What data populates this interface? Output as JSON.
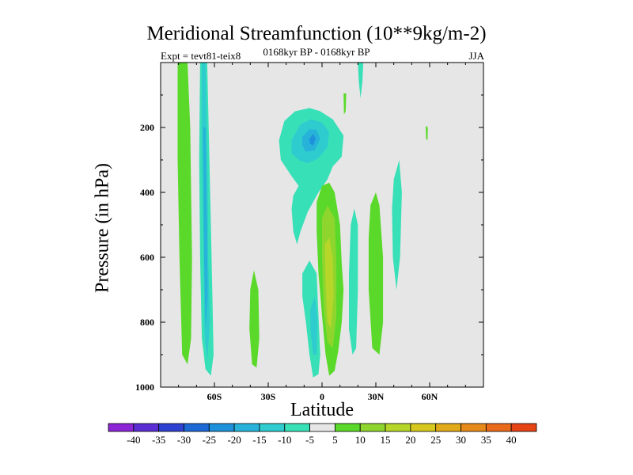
{
  "chart_data": {
    "type": "contour",
    "title": "Meridional Streamfunction (10**9kg/m-2)",
    "left_subtitle": "Expt = tevt81-teix8",
    "center_subtitle": "0168kyr BP - 0168kyr BP",
    "right_subtitle": "JJA",
    "xlabel": "Latitude",
    "ylabel": "Pressure (in hPa)",
    "xlim": [
      -90,
      90
    ],
    "ylim": [
      1000,
      0
    ],
    "x_ticks": [
      {
        "value": -60,
        "label": "60S"
      },
      {
        "value": -30,
        "label": "30S"
      },
      {
        "value": 0,
        "label": "0"
      },
      {
        "value": 30,
        "label": "30N"
      },
      {
        "value": 60,
        "label": "60N"
      }
    ],
    "y_ticks": [
      {
        "value": 200,
        "label": "200"
      },
      {
        "value": 400,
        "label": "400"
      },
      {
        "value": 600,
        "label": "600"
      },
      {
        "value": 800,
        "label": "800"
      },
      {
        "value": 1000,
        "label": "1000"
      }
    ],
    "colorbar": {
      "labels": [
        "-40",
        "-35",
        "-30",
        "-25",
        "-20",
        "-15",
        "-10",
        "-5",
        "5",
        "10",
        "15",
        "20",
        "25",
        "30",
        "35",
        "40"
      ],
      "colors": [
        "#8d26d6",
        "#5b2ed4",
        "#2e41d1",
        "#1c69d6",
        "#1e91db",
        "#26b2d9",
        "#2ecbcf",
        "#38e0b8",
        "#e6e6e6",
        "#5ad92a",
        "#8ed62e",
        "#b6d62a",
        "#d6c81e",
        "#e0aa18",
        "#e68a1a",
        "#e86a1a",
        "#e64414"
      ]
    },
    "contours": [
      {
        "name": "band-75s",
        "level": 5,
        "color": "#5ad92a",
        "points": [
          [
            -80.5,
            0
          ],
          [
            -75,
            0
          ],
          [
            -73.5,
            200
          ],
          [
            -72.5,
            600
          ],
          [
            -73,
            850
          ],
          [
            -75,
            930
          ],
          [
            -78,
            900
          ],
          [
            -79.5,
            600
          ],
          [
            -80.5,
            300
          ]
        ]
      },
      {
        "name": "band-62s-outer",
        "level": -5,
        "color": "#38e0b8",
        "points": [
          [
            -68,
            0
          ],
          [
            -64,
            0
          ],
          [
            -63,
            250
          ],
          [
            -62,
            500
          ],
          [
            -61,
            750
          ],
          [
            -60.5,
            900
          ],
          [
            -62,
            965
          ],
          [
            -65,
            945
          ],
          [
            -67,
            850
          ],
          [
            -68,
            600
          ],
          [
            -68.5,
            300
          ]
        ]
      },
      {
        "name": "band-62s-mid",
        "level": -10,
        "color": "#2ecbcf",
        "points": [
          [
            -67,
            0
          ],
          [
            -65,
            0
          ],
          [
            -64,
            300
          ],
          [
            -63.5,
            600
          ],
          [
            -62.5,
            800
          ],
          [
            -64,
            920
          ],
          [
            -65.5,
            840
          ],
          [
            -66,
            600
          ],
          [
            -67,
            250
          ]
        ]
      },
      {
        "name": "band-62s-core",
        "level": -15,
        "color": "#26b2d9",
        "points": [
          [
            -66.2,
            200
          ],
          [
            -65,
            200
          ],
          [
            -64.2,
            500
          ],
          [
            -63.8,
            720
          ],
          [
            -65,
            820
          ],
          [
            -65.8,
            600
          ]
        ]
      },
      {
        "name": "band-38s",
        "level": 5,
        "color": "#5ad92a",
        "points": [
          [
            -40,
            700
          ],
          [
            -38,
            640
          ],
          [
            -35.5,
            700
          ],
          [
            -35,
            850
          ],
          [
            -36.5,
            940
          ],
          [
            -39,
            930
          ],
          [
            -40.5,
            820
          ]
        ]
      },
      {
        "name": "upper-cell-outer",
        "level": -5,
        "color": "#38e0b8",
        "points": [
          [
            -24,
            240
          ],
          [
            -21,
            180
          ],
          [
            -15,
            150
          ],
          [
            -7,
            140
          ],
          [
            -1,
            150
          ],
          [
            6,
            175
          ],
          [
            12,
            225
          ],
          [
            11,
            290
          ],
          [
            6,
            320
          ],
          [
            3,
            360
          ],
          [
            -2,
            400
          ],
          [
            -8,
            460
          ],
          [
            -12,
            520
          ],
          [
            -14,
            560
          ],
          [
            -16,
            520
          ],
          [
            -17,
            450
          ],
          [
            -16,
            410
          ],
          [
            -13,
            380
          ],
          [
            -17,
            350
          ],
          [
            -23,
            300
          ]
        ]
      },
      {
        "name": "upper-cell-mid",
        "level": -10,
        "color": "#2ecbcf",
        "points": [
          [
            -17,
            240
          ],
          [
            -12,
            190
          ],
          [
            -6,
            175
          ],
          [
            0,
            185
          ],
          [
            4,
            215
          ],
          [
            3,
            260
          ],
          [
            -2,
            295
          ],
          [
            -8,
            310
          ],
          [
            -13,
            300
          ],
          [
            -17,
            280
          ]
        ]
      },
      {
        "name": "upper-cell-inner",
        "level": -15,
        "color": "#26b2d9",
        "points": [
          [
            -11,
            230
          ],
          [
            -7,
            205
          ],
          [
            -3,
            208
          ],
          [
            -1,
            235
          ],
          [
            -4,
            270
          ],
          [
            -9,
            275
          ],
          [
            -11,
            255
          ]
        ]
      },
      {
        "name": "upper-cell-core",
        "level": -20,
        "color": "#1e91db",
        "points": [
          [
            -7,
            235
          ],
          [
            -5,
            220
          ],
          [
            -3.5,
            235
          ],
          [
            -5,
            255
          ],
          [
            -6.8,
            250
          ]
        ]
      },
      {
        "name": "center-neg-lower",
        "level": -5,
        "color": "#38e0b8",
        "points": [
          [
            -11,
            650
          ],
          [
            -7,
            610
          ],
          [
            -3,
            650
          ],
          [
            -2,
            780
          ],
          [
            -1,
            900
          ],
          [
            -2,
            960
          ],
          [
            -5,
            970
          ],
          [
            -7,
            900
          ],
          [
            -9,
            800
          ],
          [
            -11,
            720
          ]
        ]
      },
      {
        "name": "center-neg-lower-mid",
        "level": -10,
        "color": "#2ecbcf",
        "points": [
          [
            -6.5,
            760
          ],
          [
            -4,
            720
          ],
          [
            -2.5,
            790
          ],
          [
            -3,
            900
          ],
          [
            -5,
            900
          ],
          [
            -6.5,
            820
          ]
        ]
      },
      {
        "name": "center-pos-outer",
        "level": 5,
        "color": "#5ad92a",
        "points": [
          [
            -3,
            430
          ],
          [
            0,
            380
          ],
          [
            4,
            370
          ],
          [
            7,
            400
          ],
          [
            10,
            500
          ],
          [
            11,
            620
          ],
          [
            12,
            700
          ],
          [
            11,
            800
          ],
          [
            9,
            890
          ],
          [
            7,
            950
          ],
          [
            4,
            965
          ],
          [
            2,
            900
          ],
          [
            0,
            780
          ],
          [
            -2,
            650
          ],
          [
            -3,
            520
          ]
        ]
      },
      {
        "name": "center-pos-mid",
        "level": 10,
        "color": "#8ed62e",
        "points": [
          [
            0,
            480
          ],
          [
            3,
            440
          ],
          [
            7,
            480
          ],
          [
            8,
            620
          ],
          [
            8,
            780
          ],
          [
            6,
            880
          ],
          [
            3,
            860
          ],
          [
            1,
            760
          ],
          [
            0,
            600
          ]
        ]
      },
      {
        "name": "center-pos-core",
        "level": 15,
        "color": "#b6d62a",
        "points": [
          [
            1.5,
            560
          ],
          [
            4,
            540
          ],
          [
            6,
            600
          ],
          [
            6.5,
            720
          ],
          [
            5,
            820
          ],
          [
            3,
            800
          ],
          [
            2,
            680
          ]
        ]
      },
      {
        "name": "band-17n",
        "level": -5,
        "color": "#38e0b8",
        "points": [
          [
            16,
            500
          ],
          [
            18,
            450
          ],
          [
            20,
            500
          ],
          [
            20,
            700
          ],
          [
            19,
            880
          ],
          [
            17,
            900
          ],
          [
            15,
            820
          ],
          [
            15,
            650
          ]
        ]
      },
      {
        "name": "band-31n",
        "level": 5,
        "color": "#5ad92a",
        "points": [
          [
            27,
            440
          ],
          [
            30,
            400
          ],
          [
            32,
            440
          ],
          [
            34,
            600
          ],
          [
            34,
            800
          ],
          [
            32,
            900
          ],
          [
            28,
            880
          ],
          [
            26,
            700
          ],
          [
            26,
            540
          ]
        ]
      },
      {
        "name": "band-43n",
        "level": -5,
        "color": "#38e0b8",
        "points": [
          [
            40,
            360
          ],
          [
            43,
            300
          ],
          [
            44.5,
            400
          ],
          [
            43.5,
            600
          ],
          [
            41.5,
            700
          ],
          [
            39.5,
            600
          ],
          [
            39,
            450
          ]
        ]
      },
      {
        "name": "top-wisp-30n",
        "level": -5,
        "color": "#38e0b8",
        "points": [
          [
            20,
            0
          ],
          [
            23,
            0
          ],
          [
            22.5,
            60
          ],
          [
            21.5,
            110
          ],
          [
            20.5,
            60
          ]
        ]
      },
      {
        "name": "wisp-18n",
        "level": 5,
        "color": "#5ad92a",
        "points": [
          [
            12,
            95
          ],
          [
            13.5,
            95
          ],
          [
            13.2,
            150
          ],
          [
            12.2,
            160
          ]
        ]
      },
      {
        "name": "wisp-58n",
        "level": 5,
        "color": "#5ad92a",
        "points": [
          [
            57.8,
            195
          ],
          [
            59,
            200
          ],
          [
            58.8,
            240
          ],
          [
            58,
            235
          ]
        ]
      }
    ]
  }
}
